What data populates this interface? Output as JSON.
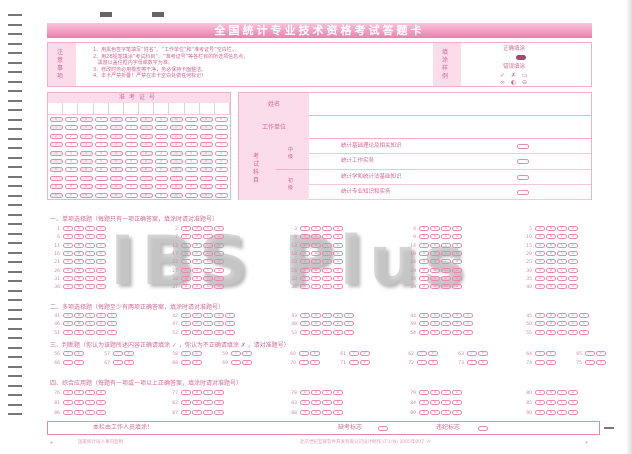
{
  "title": "全国统计专业技术资格考试答题卡",
  "notice": {
    "label": "注意事项",
    "lines": [
      "1、用黑色签字笔填写“姓名”、“工作单位”和“准考证号”空白栏。",
      "2、用2B铅笔填涂“考试科目”、“准考证号”等各栏目的所选项信息点，",
      "   黑度以盖住框内字母或数字为准。",
      "3、修改时务必用橡皮擦干净，务必保持卡面整洁。",
      "4、本卡严禁折叠！严禁在本卡空白处做任何标记！"
    ]
  },
  "sample": {
    "label": "填涂样例",
    "correct": "正确填涂",
    "wrong": "错误填涂"
  },
  "ticket": {
    "label": "准考证号",
    "digits": [
      "0",
      "1",
      "2",
      "3",
      "4",
      "5",
      "6",
      "7",
      "8",
      "9"
    ]
  },
  "info": {
    "name": "姓名",
    "unit": "工作单位",
    "subject": "考试科目",
    "mid": "中级",
    "junior": "初级",
    "subjects": [
      "统计基础理论及相关知识",
      "统计工作实务",
      "统计学和统计法基础知识",
      "统计专业知识和实务"
    ]
  },
  "sections": [
    {
      "title": "一、单项选择题（每题只有一项正确答案，填涂时请对准题号）",
      "options": [
        "A",
        "B",
        "C",
        "D"
      ],
      "start": 1,
      "end": 40
    },
    {
      "title": "二、多项选择题（每题至少有两项正确答案，填涂时请对准题号）",
      "options": [
        "A",
        "B",
        "C",
        "D",
        "E"
      ],
      "start": 41,
      "end": 55
    },
    {
      "title": "三、判断题（你认为该题所述内容正确请填涂 ✓ ，你认为不正确请填涂 ✗ ，请对准题号）",
      "options": [
        "✓",
        "✗"
      ],
      "start": 56,
      "end": 75
    },
    {
      "title": "四、综合应用题（每题有一项或一项以上正确答案，填涂时请对准题号）",
      "options": [
        "A",
        "B",
        "C",
        "D"
      ],
      "start": 76,
      "end": 90
    }
  ],
  "staff": {
    "label": "本栏由工作人员填涂！",
    "absent": "缺考标志",
    "violation": "违纪标志"
  },
  "footer": {
    "left": "国家统计局人事司监制",
    "right": "北京世纪互联软件开发有限公司设计制作   LT-1(N)   2005年007   -A-"
  },
  "watermark": "IBS Plus",
  "colors": {
    "accent": "#ec7fae",
    "light": "#fbdcea"
  }
}
